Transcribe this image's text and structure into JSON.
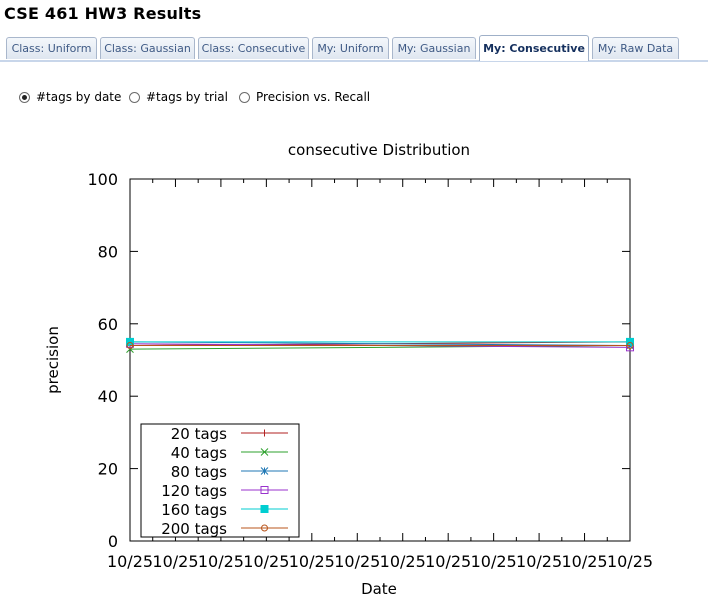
{
  "page": {
    "title": "CSE 461 HW3 Results"
  },
  "tabs": [
    {
      "label": "Class: Uniform",
      "selected": false
    },
    {
      "label": "Class: Gaussian",
      "selected": false
    },
    {
      "label": "Class: Consecutive",
      "selected": false
    },
    {
      "label": "My: Uniform",
      "selected": false
    },
    {
      "label": "My: Gaussian",
      "selected": false
    },
    {
      "label": "My: Consecutive",
      "selected": true
    },
    {
      "label": "My: Raw Data",
      "selected": false
    }
  ],
  "view_options": [
    {
      "label": "#tags by date",
      "checked": true
    },
    {
      "label": "#tags by trial",
      "checked": false
    },
    {
      "label": "Precision vs. Recall",
      "checked": false
    }
  ],
  "chart_data": {
    "type": "line",
    "title": "consecutive Distribution",
    "xlabel": "Date",
    "ylabel": "precision",
    "ylim": [
      0,
      100
    ],
    "y_ticks": [
      "0",
      "20",
      "40",
      "60",
      "80",
      "100"
    ],
    "x_ticks": [
      "10/25",
      "10/25",
      "10/25",
      "10/25",
      "10/25",
      "10/25",
      "10/25",
      "10/25",
      "10/25",
      "10/25",
      "10/25",
      "10/25"
    ],
    "grid": false,
    "legend_position": "bottom-left",
    "series": [
      {
        "name": "20 tags",
        "color": "#b22222",
        "marker": "plus",
        "values": [
          54.0,
          55.0
        ]
      },
      {
        "name": "40 tags",
        "color": "#2ca02c",
        "marker": "cross",
        "values": [
          53.0,
          54.0
        ]
      },
      {
        "name": "80 tags",
        "color": "#1f77b4",
        "marker": "star",
        "values": [
          55.0,
          54.0
        ]
      },
      {
        "name": "120 tags",
        "color": "#9932cc",
        "marker": "square",
        "values": [
          54.5,
          53.5
        ]
      },
      {
        "name": "160 tags",
        "color": "#00ced1",
        "marker": "filled-square",
        "values": [
          55.0,
          55.0
        ]
      },
      {
        "name": "200 tags",
        "color": "#b8541b",
        "marker": "circle",
        "values": [
          54.0,
          54.0
        ]
      }
    ]
  }
}
